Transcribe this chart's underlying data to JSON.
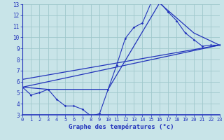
{
  "xlabel": "Graphe des températures (°c)",
  "xlim": [
    0,
    23
  ],
  "ylim": [
    3,
    13
  ],
  "yticks": [
    3,
    4,
    5,
    6,
    7,
    8,
    9,
    10,
    11,
    12,
    13
  ],
  "xticks": [
    0,
    1,
    2,
    3,
    4,
    5,
    6,
    7,
    8,
    9,
    10,
    11,
    12,
    13,
    14,
    15,
    16,
    17,
    18,
    19,
    20,
    21,
    22,
    23
  ],
  "background_color": "#c8e4e8",
  "grid_color": "#a0c8cc",
  "line_color": "#2233bb",
  "curve1_x": [
    0,
    1,
    2,
    3,
    4,
    5,
    6,
    7,
    8,
    9,
    10,
    11,
    12,
    13,
    14,
    15,
    16,
    17,
    18,
    19,
    20,
    21,
    22,
    23
  ],
  "curve1_y": [
    5.5,
    4.8,
    5.0,
    5.3,
    4.4,
    3.8,
    3.8,
    3.5,
    2.9,
    3.1,
    5.3,
    7.5,
    9.9,
    10.9,
    11.3,
    13.1,
    13.2,
    12.3,
    11.5,
    10.4,
    9.8,
    9.2,
    9.3,
    9.3
  ],
  "curve2_x": [
    0,
    3,
    10,
    16,
    20,
    23
  ],
  "curve2_y": [
    5.5,
    5.3,
    5.3,
    13.1,
    10.4,
    9.3
  ],
  "curve3_x": [
    0,
    23
  ],
  "curve3_y": [
    5.5,
    9.3
  ],
  "curve4_x": [
    0,
    23
  ],
  "curve4_y": [
    6.2,
    9.3
  ]
}
